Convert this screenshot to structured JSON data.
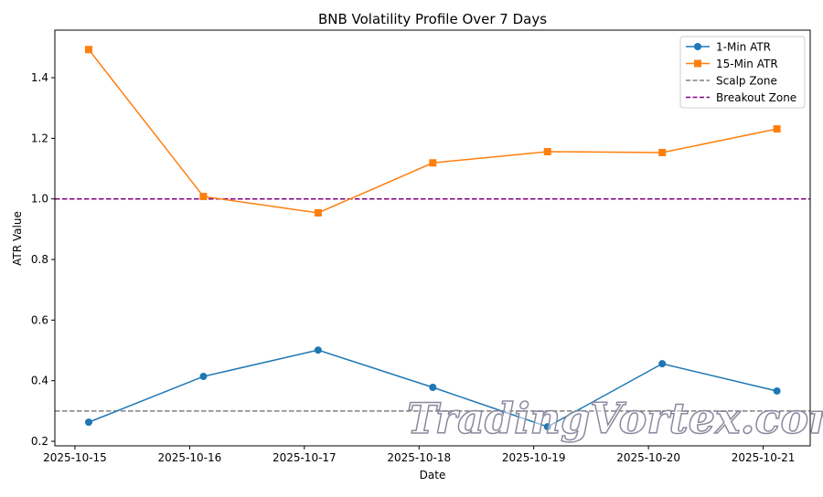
{
  "chart_data": {
    "type": "line",
    "title": "BNB Volatility Profile Over 7 Days",
    "xlabel": "Date",
    "ylabel": "ATR Value",
    "x_tick_labels": [
      "2025-10-15",
      "2025-10-16",
      "2025-10-17",
      "2025-10-18",
      "2025-10-19",
      "2025-10-20",
      "2025-10-21"
    ],
    "x": [
      0.12,
      1.12,
      2.12,
      3.12,
      4.12,
      5.12,
      6.12
    ],
    "xlim": [
      -0.175,
      6.41
    ],
    "ylim": [
      0.185,
      1.557
    ],
    "y_ticks": [
      0.2,
      0.4,
      0.6,
      0.8,
      1.0,
      1.2,
      1.4
    ],
    "y_tick_labels": [
      "0.2",
      "0.4",
      "0.6",
      "0.8",
      "1.0",
      "1.2",
      "1.4"
    ],
    "series": [
      {
        "name": "1-Min ATR",
        "color": "#1f77b4",
        "marker": "circle",
        "values": [
          0.263,
          0.414,
          0.501,
          0.378,
          0.248,
          0.456,
          0.366
        ]
      },
      {
        "name": "15-Min ATR",
        "color": "#ff7f0e",
        "marker": "square",
        "values": [
          1.493,
          1.008,
          0.954,
          1.119,
          1.156,
          1.153,
          1.231
        ]
      }
    ],
    "hlines": [
      {
        "name": "Scalp Zone",
        "y": 0.3,
        "color": "#808080"
      },
      {
        "name": "Breakout Zone",
        "y": 1.0,
        "color": "#800080"
      }
    ],
    "legend_position": "top-right",
    "grid": false
  },
  "watermark": "TradingVortex.com"
}
